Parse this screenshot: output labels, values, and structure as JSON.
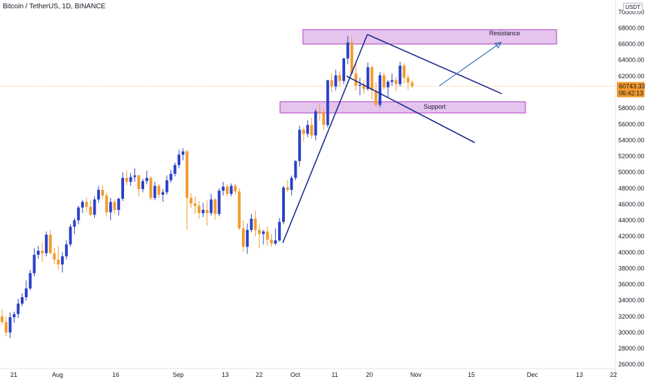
{
  "header": {
    "title": "Bitcoin / TetherUS, 1D, BINANCE"
  },
  "price_badge": {
    "price": "60743.33",
    "countdown": "06:42:13",
    "currency": "USDT"
  },
  "annotations": {
    "resistance": "Resistance",
    "support": "Support"
  },
  "colors": {
    "up": "#2a41c9",
    "down": "#f39b2e",
    "zone_fill": "#e5c4ee",
    "zone_border": "#b33ac6",
    "trend": "#1c2a8c",
    "arrow": "#2c6fb5",
    "badge": "#f39b2e"
  },
  "chart_data": {
    "type": "candlestick",
    "title": "Bitcoin / TetherUS, 1D, BINANCE",
    "ylim": [
      25500,
      71500
    ],
    "y_ticks": [
      "70000.00",
      "68000.00",
      "66000.00",
      "64000.00",
      "62000.00",
      "60000.00",
      "58000.00",
      "56000.00",
      "54000.00",
      "52000.00",
      "50000.00",
      "48000.00",
      "46000.00",
      "44000.00",
      "42000.00",
      "40000.00",
      "38000.00",
      "36000.00",
      "34000.00",
      "32000.00",
      "30000.00",
      "28000.00",
      "26000.00"
    ],
    "x_ticks": [
      "21",
      "Aug",
      "16",
      "Sep",
      "13",
      "22",
      "Oct",
      "11",
      "20",
      "Nov",
      "15",
      "Dec",
      "13",
      "22"
    ],
    "candles": [
      {
        "o": 32000,
        "h": 32900,
        "l": 31000,
        "c": 31300
      },
      {
        "o": 31300,
        "h": 32000,
        "l": 29500,
        "c": 30000
      },
      {
        "o": 30000,
        "h": 32500,
        "l": 29300,
        "c": 31900
      },
      {
        "o": 31900,
        "h": 32600,
        "l": 31200,
        "c": 32300
      },
      {
        "o": 32300,
        "h": 34200,
        "l": 31800,
        "c": 33600
      },
      {
        "o": 33600,
        "h": 34900,
        "l": 33300,
        "c": 34400
      },
      {
        "o": 34400,
        "h": 36500,
        "l": 34000,
        "c": 35500
      },
      {
        "o": 35500,
        "h": 37800,
        "l": 35300,
        "c": 37400
      },
      {
        "o": 37400,
        "h": 40500,
        "l": 37000,
        "c": 39700
      },
      {
        "o": 39700,
        "h": 40800,
        "l": 39200,
        "c": 40200
      },
      {
        "o": 40200,
        "h": 41200,
        "l": 38800,
        "c": 39900
      },
      {
        "o": 39900,
        "h": 42600,
        "l": 39500,
        "c": 42200
      },
      {
        "o": 42200,
        "h": 42800,
        "l": 39800,
        "c": 39900
      },
      {
        "o": 39900,
        "h": 40600,
        "l": 38500,
        "c": 39100
      },
      {
        "o": 39100,
        "h": 40800,
        "l": 37800,
        "c": 38500
      },
      {
        "o": 38500,
        "h": 40000,
        "l": 37500,
        "c": 39500
      },
      {
        "o": 39500,
        "h": 41500,
        "l": 39100,
        "c": 41000
      },
      {
        "o": 41000,
        "h": 43500,
        "l": 40700,
        "c": 43200
      },
      {
        "o": 43200,
        "h": 44300,
        "l": 42300,
        "c": 44000
      },
      {
        "o": 44000,
        "h": 45800,
        "l": 43500,
        "c": 45600
      },
      {
        "o": 45600,
        "h": 46500,
        "l": 44900,
        "c": 46300
      },
      {
        "o": 46300,
        "h": 46800,
        "l": 45000,
        "c": 45700
      },
      {
        "o": 45700,
        "h": 46500,
        "l": 44500,
        "c": 44700
      },
      {
        "o": 44700,
        "h": 47000,
        "l": 44300,
        "c": 46600
      },
      {
        "o": 46600,
        "h": 48300,
        "l": 46200,
        "c": 47800
      },
      {
        "o": 47800,
        "h": 48400,
        "l": 46700,
        "c": 47100
      },
      {
        "o": 47100,
        "h": 47500,
        "l": 44500,
        "c": 45000
      },
      {
        "o": 45000,
        "h": 46800,
        "l": 44000,
        "c": 46300
      },
      {
        "o": 46300,
        "h": 46600,
        "l": 44800,
        "c": 45300
      },
      {
        "o": 45300,
        "h": 46800,
        "l": 44600,
        "c": 46700
      },
      {
        "o": 46700,
        "h": 50000,
        "l": 46400,
        "c": 49300
      },
      {
        "o": 49300,
        "h": 50200,
        "l": 48400,
        "c": 48800
      },
      {
        "o": 48800,
        "h": 49900,
        "l": 48300,
        "c": 49400
      },
      {
        "o": 49400,
        "h": 50500,
        "l": 48800,
        "c": 49600
      },
      {
        "o": 49600,
        "h": 49700,
        "l": 47000,
        "c": 47900
      },
      {
        "o": 47900,
        "h": 49200,
        "l": 47500,
        "c": 48900
      },
      {
        "o": 48900,
        "h": 50200,
        "l": 48500,
        "c": 49300
      },
      {
        "o": 49300,
        "h": 49500,
        "l": 46500,
        "c": 46800
      },
      {
        "o": 46800,
        "h": 48800,
        "l": 46500,
        "c": 48300
      },
      {
        "o": 48300,
        "h": 48500,
        "l": 46800,
        "c": 47200
      },
      {
        "o": 47200,
        "h": 47900,
        "l": 46300,
        "c": 47500
      },
      {
        "o": 47500,
        "h": 49600,
        "l": 47200,
        "c": 49000
      },
      {
        "o": 49000,
        "h": 50300,
        "l": 48700,
        "c": 49800
      },
      {
        "o": 49800,
        "h": 51200,
        "l": 49500,
        "c": 50900
      },
      {
        "o": 50900,
        "h": 52800,
        "l": 50500,
        "c": 52200
      },
      {
        "o": 52200,
        "h": 53000,
        "l": 51500,
        "c": 52600
      },
      {
        "o": 52600,
        "h": 52800,
        "l": 42800,
        "c": 46800
      },
      {
        "o": 46800,
        "h": 47400,
        "l": 45500,
        "c": 46100
      },
      {
        "o": 46100,
        "h": 47000,
        "l": 44800,
        "c": 45800
      },
      {
        "o": 45800,
        "h": 46400,
        "l": 44200,
        "c": 44900
      },
      {
        "o": 44900,
        "h": 46200,
        "l": 44400,
        "c": 45300
      },
      {
        "o": 45300,
        "h": 46500,
        "l": 43300,
        "c": 44900
      },
      {
        "o": 44900,
        "h": 47300,
        "l": 44600,
        "c": 46600
      },
      {
        "o": 46600,
        "h": 46800,
        "l": 44100,
        "c": 44800
      },
      {
        "o": 44800,
        "h": 48000,
        "l": 44500,
        "c": 47700
      },
      {
        "o": 47700,
        "h": 48800,
        "l": 47100,
        "c": 48200
      },
      {
        "o": 48200,
        "h": 48500,
        "l": 47000,
        "c": 47300
      },
      {
        "o": 47300,
        "h": 48600,
        "l": 47000,
        "c": 48300
      },
      {
        "o": 48300,
        "h": 48600,
        "l": 47200,
        "c": 47600
      },
      {
        "o": 47600,
        "h": 48000,
        "l": 42800,
        "c": 43000
      },
      {
        "o": 43000,
        "h": 44000,
        "l": 40100,
        "c": 40700
      },
      {
        "o": 40700,
        "h": 43600,
        "l": 39800,
        "c": 42800
      },
      {
        "o": 42800,
        "h": 44800,
        "l": 42500,
        "c": 44200
      },
      {
        "o": 44200,
        "h": 45200,
        "l": 42000,
        "c": 42800
      },
      {
        "o": 42800,
        "h": 43500,
        "l": 40500,
        "c": 42300
      },
      {
        "o": 42300,
        "h": 42800,
        "l": 41000,
        "c": 42600
      },
      {
        "o": 42600,
        "h": 43200,
        "l": 40800,
        "c": 41600
      },
      {
        "o": 41600,
        "h": 42300,
        "l": 40700,
        "c": 41100
      },
      {
        "o": 41100,
        "h": 43000,
        "l": 40900,
        "c": 41500
      },
      {
        "o": 41500,
        "h": 44300,
        "l": 41300,
        "c": 43800
      },
      {
        "o": 43800,
        "h": 48300,
        "l": 43500,
        "c": 48100
      },
      {
        "o": 48100,
        "h": 49000,
        "l": 47500,
        "c": 47800
      },
      {
        "o": 47800,
        "h": 49600,
        "l": 47100,
        "c": 49300
      },
      {
        "o": 49300,
        "h": 51500,
        "l": 49000,
        "c": 51400
      },
      {
        "o": 51400,
        "h": 55800,
        "l": 50700,
        "c": 55300
      },
      {
        "o": 55300,
        "h": 55600,
        "l": 53800,
        "c": 54800
      },
      {
        "o": 54800,
        "h": 56500,
        "l": 54400,
        "c": 55900
      },
      {
        "o": 55900,
        "h": 56800,
        "l": 54200,
        "c": 54600
      },
      {
        "o": 54600,
        "h": 57900,
        "l": 54000,
        "c": 57600
      },
      {
        "o": 57600,
        "h": 58600,
        "l": 56400,
        "c": 57400
      },
      {
        "o": 57400,
        "h": 58000,
        "l": 55200,
        "c": 55900
      },
      {
        "o": 55900,
        "h": 61500,
        "l": 55600,
        "c": 61500
      },
      {
        "o": 61500,
        "h": 62300,
        "l": 60000,
        "c": 60700
      },
      {
        "o": 60700,
        "h": 62800,
        "l": 60200,
        "c": 62100
      },
      {
        "o": 62100,
        "h": 62600,
        "l": 60700,
        "c": 61400
      },
      {
        "o": 61400,
        "h": 64300,
        "l": 61000,
        "c": 64200
      },
      {
        "o": 64200,
        "h": 67000,
        "l": 63500,
        "c": 66200
      },
      {
        "o": 66200,
        "h": 66900,
        "l": 62200,
        "c": 62300
      },
      {
        "o": 62300,
        "h": 63800,
        "l": 60200,
        "c": 60800
      },
      {
        "o": 60800,
        "h": 61800,
        "l": 59600,
        "c": 60900
      },
      {
        "o": 60900,
        "h": 61500,
        "l": 59800,
        "c": 60400
      },
      {
        "o": 60400,
        "h": 63700,
        "l": 60200,
        "c": 63100
      },
      {
        "o": 63100,
        "h": 63300,
        "l": 59100,
        "c": 60200
      },
      {
        "o": 60200,
        "h": 61200,
        "l": 58200,
        "c": 58400
      },
      {
        "o": 58400,
        "h": 62500,
        "l": 58100,
        "c": 62100
      },
      {
        "o": 62100,
        "h": 62400,
        "l": 60300,
        "c": 60600
      },
      {
        "o": 60600,
        "h": 61500,
        "l": 59400,
        "c": 61300
      },
      {
        "o": 61300,
        "h": 62300,
        "l": 60800,
        "c": 61500
      },
      {
        "o": 61500,
        "h": 61900,
        "l": 60100,
        "c": 61000
      },
      {
        "o": 61000,
        "h": 63800,
        "l": 60700,
        "c": 63300
      },
      {
        "o": 63300,
        "h": 63600,
        "l": 61100,
        "c": 61800
      },
      {
        "o": 61800,
        "h": 62200,
        "l": 60300,
        "c": 61200
      },
      {
        "o": 61200,
        "h": 61500,
        "l": 60500,
        "c": 60743
      }
    ]
  }
}
